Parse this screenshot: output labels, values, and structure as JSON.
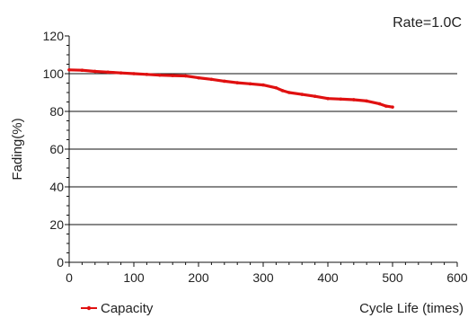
{
  "chart_data": {
    "type": "line",
    "rate_label": "Rate=1.0C",
    "ylabel": "Fading(%)",
    "xlabel": "Cycle Life (times)",
    "xlim": [
      0,
      600
    ],
    "ylim": [
      0,
      120
    ],
    "xticks": [
      0,
      100,
      200,
      300,
      400,
      500,
      600
    ],
    "yticks": [
      0,
      20,
      40,
      60,
      80,
      100,
      120
    ],
    "grid": "horizontal",
    "legend": "bottom-left",
    "series": [
      {
        "name": "Capacity",
        "color": "#e01010",
        "x": [
          0,
          20,
          40,
          60,
          80,
          100,
          120,
          140,
          160,
          180,
          200,
          220,
          240,
          260,
          280,
          300,
          320,
          330,
          340,
          360,
          380,
          400,
          420,
          440,
          460,
          480,
          490,
          500
        ],
        "y": [
          102,
          101.8,
          101.2,
          100.8,
          100.4,
          100,
          99.6,
          99.2,
          99,
          98.8,
          97.8,
          97,
          96,
          95.2,
          94.6,
          94,
          92.5,
          91,
          90,
          89,
          88,
          86.8,
          86.5,
          86.2,
          85.5,
          84,
          82.8,
          82.3
        ]
      }
    ]
  }
}
